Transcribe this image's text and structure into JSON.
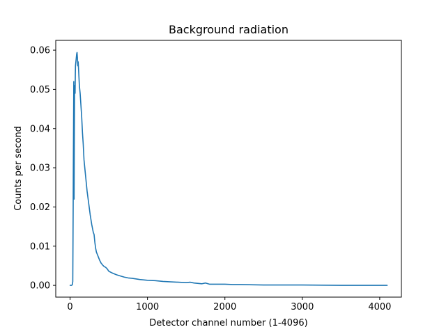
{
  "chart_data": {
    "type": "line",
    "title": "Background radiation",
    "xlabel": "Detector channel number (1-4096)",
    "ylabel": "Counts per second",
    "xlim": [
      -185,
      4280
    ],
    "ylim": [
      -0.003,
      0.0625
    ],
    "xticks": [
      0,
      1000,
      2000,
      3000,
      4000
    ],
    "xtick_labels": [
      "0",
      "1000",
      "2000",
      "3000",
      "4000"
    ],
    "yticks": [
      0.0,
      0.01,
      0.02,
      0.03,
      0.04,
      0.05,
      0.06
    ],
    "ytick_labels": [
      "0.00",
      "0.01",
      "0.02",
      "0.03",
      "0.04",
      "0.05",
      "0.06"
    ],
    "grid": false,
    "series": [
      {
        "color": "#1f77b4",
        "x": [
          1,
          20,
          30,
          35,
          38,
          40,
          42,
          45,
          48,
          50,
          52,
          55,
          58,
          60,
          62,
          65,
          68,
          70,
          75,
          80,
          85,
          90,
          95,
          100,
          105,
          110,
          115,
          120,
          130,
          140,
          150,
          160,
          170,
          180,
          200,
          220,
          240,
          260,
          280,
          300,
          310,
          320,
          330,
          340,
          360,
          380,
          400,
          420,
          440,
          460,
          480,
          500,
          550,
          600,
          650,
          700,
          750,
          800,
          900,
          1000,
          1100,
          1200,
          1300,
          1400,
          1500,
          1550,
          1600,
          1700,
          1750,
          1800,
          1900,
          2000,
          2100,
          2200,
          2500,
          3000,
          3500,
          4096
        ],
        "y": [
          0.0,
          0.0,
          0.0002,
          0.001,
          0.012,
          0.02,
          0.03,
          0.041,
          0.052,
          0.033,
          0.022,
          0.037,
          0.049,
          0.051,
          0.05,
          0.049,
          0.054,
          0.056,
          0.057,
          0.058,
          0.059,
          0.0594,
          0.058,
          0.056,
          0.057,
          0.055,
          0.053,
          0.051,
          0.049,
          0.046,
          0.043,
          0.039,
          0.036,
          0.032,
          0.028,
          0.024,
          0.021,
          0.018,
          0.0155,
          0.0135,
          0.013,
          0.011,
          0.0095,
          0.0085,
          0.0075,
          0.0065,
          0.0057,
          0.0052,
          0.0048,
          0.0046,
          0.0042,
          0.0036,
          0.0031,
          0.0027,
          0.0024,
          0.0021,
          0.0019,
          0.0018,
          0.0015,
          0.0013,
          0.0012,
          0.001,
          0.0009,
          0.0008,
          0.0007,
          0.0008,
          0.0006,
          0.0004,
          0.0006,
          0.0003,
          0.0003,
          0.0003,
          0.0002,
          0.0002,
          0.0001,
          0.0001,
          0.0,
          0.0
        ]
      }
    ]
  }
}
